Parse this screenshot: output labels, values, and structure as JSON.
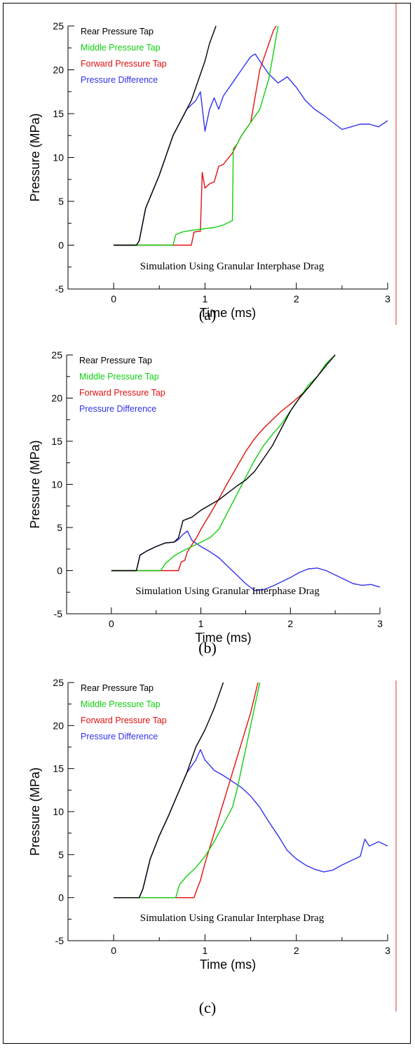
{
  "captions": [
    "(a)",
    "(b)",
    "(c)"
  ],
  "colors": {
    "rear": "#000000",
    "middle": "#10d010",
    "forward": "#e01010",
    "difference": "#3333ee",
    "edge_line": "#e03030"
  },
  "chart_data": [
    {
      "type": "line",
      "xlabel": "Time (ms)",
      "ylabel": "Pressure (MPa)",
      "xlim": [
        -0.5,
        3
      ],
      "ylim": [
        -5,
        25
      ],
      "xticks": [
        0,
        1,
        2,
        3
      ],
      "yticks": [
        -5,
        0,
        5,
        10,
        15,
        20,
        25
      ],
      "annotation": "Simulation Using Granular Interphase Drag",
      "legend_position": "top-left",
      "series": [
        {
          "name": "Rear Pressure Tap",
          "color": "#000000",
          "x": [
            0,
            0.25,
            0.28,
            0.35,
            0.5,
            0.65,
            0.8,
            0.85,
            0.9,
            1.0,
            1.05,
            1.12
          ],
          "y": [
            0,
            0,
            0.5,
            4.2,
            8,
            12.5,
            15.5,
            16.5,
            18,
            21,
            23,
            25
          ]
        },
        {
          "name": "Middle Pressure Tap",
          "color": "#10d010",
          "x": [
            0,
            0.65,
            0.68,
            0.75,
            0.85,
            0.95,
            1.0,
            1.1,
            1.2,
            1.3,
            1.31,
            1.35,
            1.4,
            1.5,
            1.6,
            1.7,
            1.8
          ],
          "y": [
            0,
            0,
            1.2,
            1.5,
            1.7,
            1.8,
            1.9,
            2.0,
            2.3,
            2.8,
            11,
            11.5,
            12.5,
            14,
            15.5,
            19,
            25
          ]
        },
        {
          "name": "Forward Pressure Tap",
          "color": "#e01010",
          "x": [
            0,
            0.85,
            0.88,
            0.95,
            0.97,
            1.0,
            1.05,
            1.1,
            1.15,
            1.2,
            1.3,
            1.4,
            1.5,
            1.55,
            1.6,
            1.65,
            1.7,
            1.75,
            1.78
          ],
          "y": [
            0,
            0,
            1.5,
            1.6,
            8.3,
            6.5,
            7.0,
            7.2,
            9.0,
            9.2,
            10.5,
            12.5,
            14.0,
            17.0,
            20.0,
            21.5,
            23.0,
            24.5,
            25.0
          ]
        },
        {
          "name": "Pressure Difference",
          "color": "#3333ee",
          "x": [
            0,
            0.25,
            0.28,
            0.35,
            0.5,
            0.65,
            0.8,
            0.85,
            0.9,
            0.95,
            1.0,
            1.05,
            1.1,
            1.15,
            1.2,
            1.3,
            1.4,
            1.5,
            1.55,
            1.6,
            1.7,
            1.8,
            1.9,
            2.0,
            2.1,
            2.2,
            2.3,
            2.4,
            2.5,
            2.6,
            2.7,
            2.8,
            2.9,
            3.0
          ],
          "y": [
            0,
            0,
            0.5,
            4.2,
            8,
            12.5,
            15.5,
            16.0,
            16.5,
            17.5,
            13.0,
            15.5,
            16.8,
            15.5,
            17.0,
            18.5,
            20.0,
            21.5,
            21.8,
            21.0,
            19.5,
            18.5,
            19.2,
            18.0,
            16.5,
            15.5,
            14.8,
            14.0,
            13.2,
            13.5,
            13.8,
            13.8,
            13.5,
            14.2
          ]
        }
      ]
    },
    {
      "type": "line",
      "xlabel": "Time (ms)",
      "ylabel": "Pressure (MPa)",
      "xlim": [
        -0.5,
        3
      ],
      "ylim": [
        -5,
        25
      ],
      "xticks": [
        0,
        1,
        2,
        3
      ],
      "yticks": [
        -5,
        0,
        5,
        10,
        15,
        20,
        25
      ],
      "annotation": "Simulation Using Granular Interphase Drag",
      "legend_position": "top-left",
      "series": [
        {
          "name": "Rear Pressure Tap",
          "color": "#000000",
          "x": [
            0,
            0.28,
            0.32,
            0.4,
            0.5,
            0.6,
            0.7,
            0.75,
            0.8,
            0.9,
            1.0,
            1.1,
            1.2,
            1.3,
            1.4,
            1.5,
            1.6,
            1.7,
            1.8,
            1.9,
            2.0,
            2.1,
            2.2,
            2.3,
            2.4,
            2.5
          ],
          "y": [
            0,
            0,
            1.8,
            2.3,
            2.8,
            3.2,
            3.3,
            3.8,
            5.8,
            6.2,
            7.0,
            7.6,
            8.2,
            9.0,
            9.8,
            10.5,
            11.5,
            13.0,
            14.5,
            16.5,
            18.5,
            20.0,
            21.2,
            22.5,
            23.8,
            25.0
          ]
        },
        {
          "name": "Middle Pressure Tap",
          "color": "#10d010",
          "x": [
            0,
            0.55,
            0.6,
            0.7,
            0.8,
            0.9,
            1.0,
            1.1,
            1.2,
            1.3,
            1.4,
            1.5,
            1.6,
            1.7,
            1.8,
            1.9,
            2.0,
            2.1,
            2.2,
            2.3,
            2.4,
            2.5
          ],
          "y": [
            0,
            0,
            0.8,
            1.7,
            2.3,
            2.8,
            3.3,
            3.8,
            4.8,
            6.8,
            8.8,
            10.8,
            12.8,
            14.5,
            15.8,
            17.0,
            18.5,
            20.0,
            21.5,
            22.5,
            24.0,
            25.0
          ]
        },
        {
          "name": "Forward Pressure Tap",
          "color": "#e01010",
          "x": [
            0,
            0.75,
            0.78,
            0.82,
            0.85,
            0.9,
            0.95,
            1.0,
            1.1,
            1.2,
            1.3,
            1.4,
            1.5,
            1.6,
            1.7,
            1.8,
            1.9,
            2.0,
            2.1,
            2.2,
            2.3,
            2.4,
            2.5
          ],
          "y": [
            0,
            0,
            1.0,
            1.2,
            2.2,
            3.0,
            3.8,
            4.8,
            6.5,
            8.3,
            10.2,
            12.0,
            13.8,
            15.3,
            16.5,
            17.5,
            18.5,
            19.3,
            20.2,
            21.2,
            22.5,
            24.0,
            25.0
          ]
        },
        {
          "name": "Pressure Difference",
          "color": "#3333ee",
          "x": [
            0,
            0.28,
            0.32,
            0.4,
            0.5,
            0.6,
            0.7,
            0.75,
            0.8,
            0.85,
            0.9,
            1.0,
            1.1,
            1.2,
            1.3,
            1.4,
            1.5,
            1.6,
            1.7,
            1.8,
            1.9,
            2.0,
            2.1,
            2.2,
            2.3,
            2.4,
            2.5,
            2.6,
            2.7,
            2.8,
            2.9,
            3.0
          ],
          "y": [
            0,
            0,
            1.8,
            2.3,
            2.8,
            3.2,
            3.3,
            3.6,
            4.2,
            4.6,
            3.5,
            2.8,
            2.2,
            1.5,
            0.5,
            -0.5,
            -1.5,
            -2.3,
            -2.2,
            -1.8,
            -1.3,
            -0.8,
            -0.2,
            0.2,
            0.3,
            0.0,
            -0.5,
            -1.0,
            -1.5,
            -1.7,
            -1.6,
            -1.9
          ]
        }
      ]
    },
    {
      "type": "line",
      "xlabel": "Time (ms)",
      "ylabel": "Pressure (MPa)",
      "xlim": [
        -0.5,
        3
      ],
      "ylim": [
        -5,
        25
      ],
      "xticks": [
        0,
        1,
        2,
        3
      ],
      "yticks": [
        -5,
        0,
        5,
        10,
        15,
        20,
        25
      ],
      "annotation": "Simulation Using Granular Interphase Drag",
      "legend_position": "top-left",
      "series": [
        {
          "name": "Rear Pressure Tap",
          "color": "#000000",
          "x": [
            0,
            0.28,
            0.32,
            0.4,
            0.5,
            0.6,
            0.7,
            0.8,
            0.9,
            1.0,
            1.1,
            1.2
          ],
          "y": [
            0,
            0,
            1.0,
            4.5,
            7.2,
            9.5,
            12.0,
            14.5,
            17.5,
            19.5,
            22.0,
            25.0
          ]
        },
        {
          "name": "Middle Pressure Tap",
          "color": "#10d010",
          "x": [
            0,
            0.68,
            0.72,
            0.8,
            0.9,
            1.0,
            1.1,
            1.2,
            1.3,
            1.35,
            1.4,
            1.45,
            1.5,
            1.55,
            1.6
          ],
          "y": [
            0,
            0,
            1.5,
            2.5,
            3.5,
            4.8,
            6.5,
            8.5,
            10.5,
            12.5,
            15.0,
            17.5,
            20.0,
            22.5,
            25.0
          ]
        },
        {
          "name": "Forward Pressure Tap",
          "color": "#e01010",
          "x": [
            0,
            0.88,
            0.92,
            0.95,
            1.0,
            1.1,
            1.2,
            1.3,
            1.4,
            1.5,
            1.58
          ],
          "y": [
            0,
            0,
            1.2,
            2.0,
            4.0,
            7.5,
            11.0,
            14.5,
            18.0,
            21.5,
            25.0
          ]
        },
        {
          "name": "Pressure Difference",
          "color": "#3333ee",
          "x": [
            0,
            0.28,
            0.32,
            0.4,
            0.5,
            0.6,
            0.7,
            0.8,
            0.9,
            0.95,
            1.0,
            1.1,
            1.2,
            1.3,
            1.4,
            1.5,
            1.6,
            1.7,
            1.8,
            1.9,
            2.0,
            2.1,
            2.2,
            2.3,
            2.4,
            2.5,
            2.6,
            2.7,
            2.75,
            2.8,
            2.9,
            3.0
          ],
          "y": [
            0,
            0,
            1.0,
            4.5,
            7.2,
            9.5,
            12.0,
            14.5,
            16.0,
            17.2,
            16.0,
            14.8,
            14.2,
            13.5,
            12.8,
            11.8,
            10.5,
            8.8,
            7.2,
            5.5,
            4.5,
            3.8,
            3.3,
            3.0,
            3.2,
            3.8,
            4.3,
            4.8,
            6.8,
            6.0,
            6.5,
            6.0
          ]
        }
      ]
    }
  ]
}
